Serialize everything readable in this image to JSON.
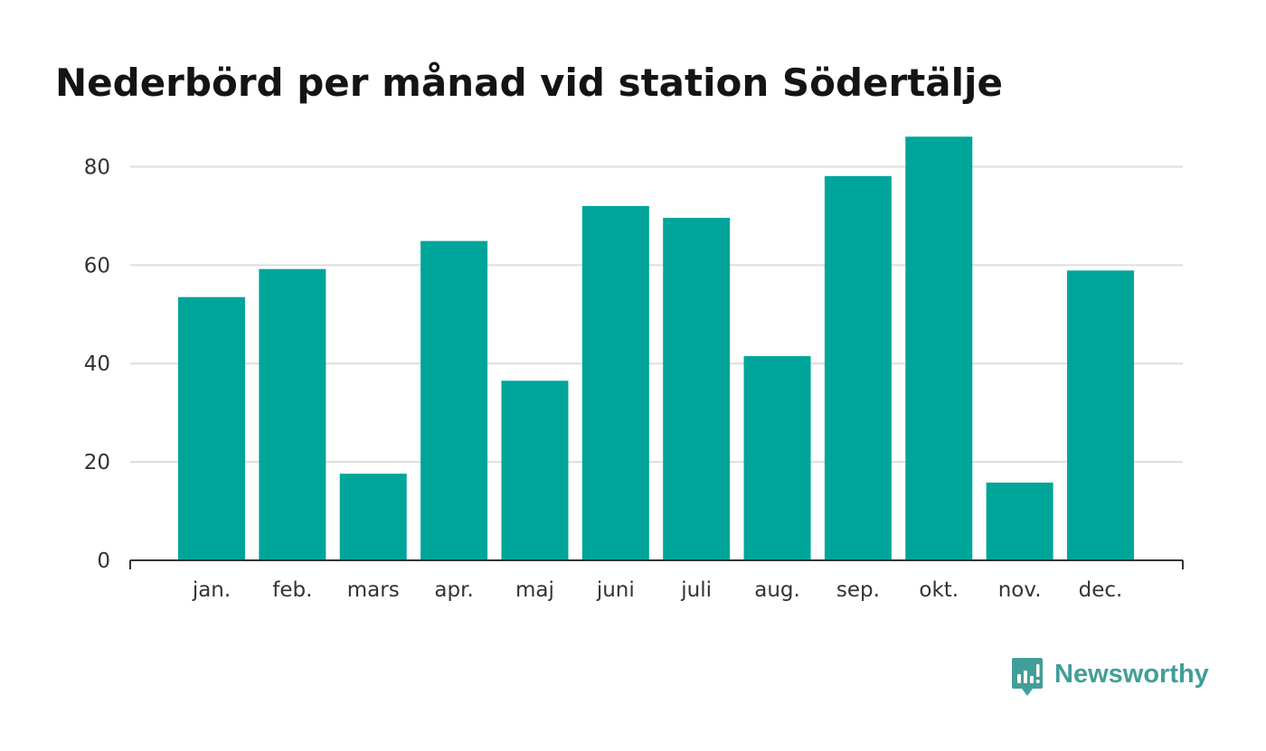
{
  "title": "Nederbörd per månad vid station Södertälje",
  "brand": {
    "name": "Newsworthy",
    "icon": "newsworthy-logo-icon",
    "color": "#419e98"
  },
  "colors": {
    "bar": "#00a59a",
    "grid": "#dedede",
    "axis": "#333333",
    "text": "#141414"
  },
  "chart_data": {
    "type": "bar",
    "title": "Nederbörd per månad vid station Södertälje",
    "xlabel": "",
    "ylabel": "",
    "categories": [
      "jan.",
      "feb.",
      "mars",
      "apr.",
      "maj",
      "juni",
      "juli",
      "aug.",
      "sep.",
      "okt.",
      "nov.",
      "dec."
    ],
    "values": [
      53.5,
      59.2,
      17.6,
      64.9,
      36.5,
      72.0,
      69.6,
      41.5,
      78.1,
      86.1,
      15.8,
      58.9
    ],
    "ylim": [
      0,
      90
    ],
    "yticks": [
      0,
      20,
      40,
      60,
      80
    ],
    "grid": true,
    "legend": "none"
  }
}
